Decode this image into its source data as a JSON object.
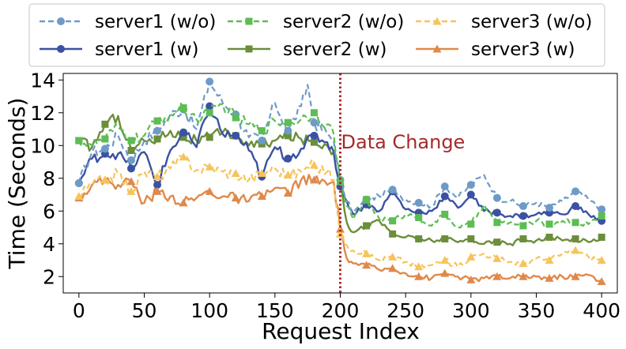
{
  "chart_data": {
    "type": "line",
    "xlabel": "Request Index",
    "ylabel": "Time (Seconds)",
    "xlim": [
      -12,
      412
    ],
    "ylim": [
      1.0,
      14.4
    ],
    "xticks": [
      0,
      50,
      100,
      150,
      200,
      250,
      300,
      350,
      400
    ],
    "yticks": [
      2,
      4,
      6,
      8,
      10,
      12,
      14
    ],
    "grid": false,
    "legend_location": "top",
    "annotation": {
      "text": "Data Change",
      "x": 200,
      "y": 10.2,
      "color": "#a52a2a"
    },
    "vline": {
      "x": 200,
      "color": "#a52a2a",
      "style": "dotted"
    },
    "series": [
      {
        "name": "server1 (w/o)",
        "color": "#6e9ac8",
        "dashed": true,
        "marker": "circle",
        "x": [
          0,
          10,
          20,
          30,
          40,
          50,
          60,
          70,
          80,
          90,
          100,
          110,
          120,
          130,
          140,
          150,
          160,
          170,
          175,
          180,
          190,
          195,
          200,
          205,
          210,
          220,
          230,
          240,
          250,
          260,
          270,
          280,
          290,
          300,
          310,
          320,
          330,
          340,
          350,
          360,
          370,
          380,
          390,
          400
        ],
        "values": [
          7.7,
          9.6,
          9.8,
          10.6,
          9.1,
          10.3,
          10.9,
          11.9,
          12.2,
          11.0,
          13.9,
          12.6,
          11.9,
          10.5,
          10.3,
          12.6,
          10.9,
          12.4,
          13.7,
          11.4,
          10.7,
          10.3,
          7.9,
          6.6,
          5.9,
          6.7,
          6.9,
          7.3,
          6.7,
          6.5,
          6.3,
          7.5,
          6.8,
          7.6,
          8.2,
          6.8,
          6.6,
          6.3,
          6.5,
          6.2,
          6.6,
          7.2,
          6.7,
          6.1
        ]
      },
      {
        "name": "server2 (w/o)",
        "color": "#5cbd52",
        "dashed": true,
        "marker": "square",
        "x": [
          0,
          10,
          20,
          30,
          40,
          50,
          60,
          70,
          80,
          90,
          100,
          110,
          120,
          130,
          140,
          150,
          160,
          170,
          180,
          190,
          195,
          200,
          205,
          210,
          220,
          230,
          240,
          250,
          260,
          270,
          280,
          290,
          300,
          310,
          320,
          330,
          340,
          350,
          360,
          370,
          380,
          390,
          400
        ],
        "values": [
          10.3,
          10.0,
          10.4,
          11.1,
          10.3,
          10.6,
          11.5,
          11.9,
          12.3,
          11.6,
          12.0,
          12.5,
          11.7,
          11.3,
          10.9,
          11.5,
          11.4,
          11.6,
          12.0,
          11.3,
          10.7,
          7.8,
          6.3,
          5.5,
          6.7,
          5.5,
          5.4,
          5.8,
          5.6,
          5.1,
          5.8,
          5.0,
          5.2,
          6.4,
          5.3,
          5.3,
          5.1,
          5.4,
          5.2,
          5.4,
          5.3,
          5.2,
          5.7
        ]
      },
      {
        "name": "server3 (w/o)",
        "color": "#f7c35a",
        "dashed": true,
        "marker": "triangle",
        "x": [
          0,
          10,
          20,
          30,
          40,
          50,
          60,
          70,
          80,
          90,
          100,
          110,
          120,
          130,
          140,
          150,
          160,
          170,
          180,
          190,
          195,
          200,
          205,
          210,
          220,
          230,
          240,
          250,
          260,
          270,
          280,
          290,
          300,
          310,
          320,
          330,
          340,
          350,
          360,
          370,
          380,
          390,
          400
        ],
        "values": [
          6.9,
          7.6,
          7.9,
          8.3,
          7.2,
          8.4,
          8.1,
          8.6,
          9.3,
          8.5,
          8.7,
          8.4,
          8.3,
          7.9,
          8.3,
          8.6,
          8.2,
          8.4,
          8.8,
          8.4,
          7.9,
          4.6,
          3.9,
          3.6,
          3.4,
          3.0,
          3.2,
          2.9,
          2.6,
          2.7,
          3.0,
          2.6,
          3.2,
          3.4,
          3.1,
          2.9,
          2.8,
          3.1,
          3.0,
          3.4,
          3.6,
          3.2,
          3.0
        ]
      },
      {
        "name": "server1 (w)",
        "color": "#3b51a3",
        "dashed": false,
        "marker": "circle",
        "x": [
          0,
          10,
          20,
          30,
          40,
          50,
          60,
          70,
          80,
          90,
          100,
          110,
          120,
          130,
          140,
          150,
          160,
          170,
          180,
          190,
          195,
          200,
          205,
          210,
          220,
          230,
          240,
          250,
          260,
          270,
          280,
          290,
          300,
          310,
          320,
          330,
          340,
          350,
          360,
          370,
          380,
          390,
          400
        ],
        "values": [
          7.7,
          9.2,
          9.5,
          9.5,
          8.6,
          9.6,
          7.6,
          9.7,
          10.8,
          9.9,
          12.4,
          10.7,
          10.6,
          9.7,
          8.1,
          9.9,
          9.2,
          9.8,
          10.6,
          10.2,
          9.6,
          7.5,
          6.6,
          5.8,
          6.4,
          6.0,
          7.2,
          6.1,
          5.9,
          6.0,
          6.9,
          6.2,
          7.0,
          6.0,
          5.9,
          5.7,
          5.7,
          5.8,
          5.9,
          5.8,
          6.3,
          5.8,
          5.4
        ]
      },
      {
        "name": "server2 (w)",
        "color": "#6b8e3a",
        "dashed": false,
        "marker": "square",
        "x": [
          0,
          10,
          20,
          30,
          40,
          50,
          60,
          70,
          80,
          90,
          100,
          110,
          120,
          130,
          140,
          150,
          160,
          170,
          180,
          190,
          195,
          200,
          205,
          210,
          220,
          230,
          240,
          250,
          260,
          270,
          280,
          290,
          300,
          310,
          320,
          330,
          340,
          350,
          360,
          370,
          380,
          390,
          400
        ],
        "values": [
          10.3,
          9.9,
          11.3,
          11.8,
          9.7,
          10.3,
          10.4,
          10.9,
          10.5,
          10.3,
          10.5,
          10.8,
          10.6,
          10.0,
          10.1,
          10.3,
          10.6,
          10.4,
          10.2,
          10.0,
          9.6,
          7.6,
          5.3,
          4.7,
          5.1,
          5.4,
          4.6,
          4.4,
          4.3,
          4.2,
          4.3,
          4.1,
          4.3,
          4.0,
          4.1,
          4.0,
          4.3,
          4.2,
          4.4,
          4.2,
          4.3,
          4.1,
          4.4
        ]
      },
      {
        "name": "server3 (w)",
        "color": "#e0894a",
        "dashed": false,
        "marker": "triangle",
        "x": [
          0,
          10,
          20,
          30,
          40,
          50,
          60,
          70,
          80,
          90,
          100,
          110,
          120,
          130,
          140,
          150,
          160,
          170,
          180,
          190,
          195,
          200,
          205,
          210,
          220,
          230,
          240,
          250,
          260,
          270,
          280,
          290,
          300,
          310,
          320,
          330,
          340,
          350,
          360,
          370,
          380,
          390,
          400
        ],
        "values": [
          6.8,
          7.6,
          7.9,
          7.6,
          7.8,
          6.5,
          7.2,
          6.9,
          6.5,
          6.8,
          7.2,
          6.9,
          6.8,
          6.6,
          6.9,
          7.4,
          7.1,
          7.9,
          7.9,
          7.6,
          7.8,
          4.9,
          3.1,
          2.8,
          2.7,
          2.4,
          2.5,
          2.2,
          2.0,
          1.9,
          2.2,
          2.0,
          1.8,
          1.9,
          2.0,
          1.9,
          2.0,
          2.0,
          1.9,
          2.0,
          2.0,
          2.1,
          1.7
        ]
      }
    ]
  }
}
